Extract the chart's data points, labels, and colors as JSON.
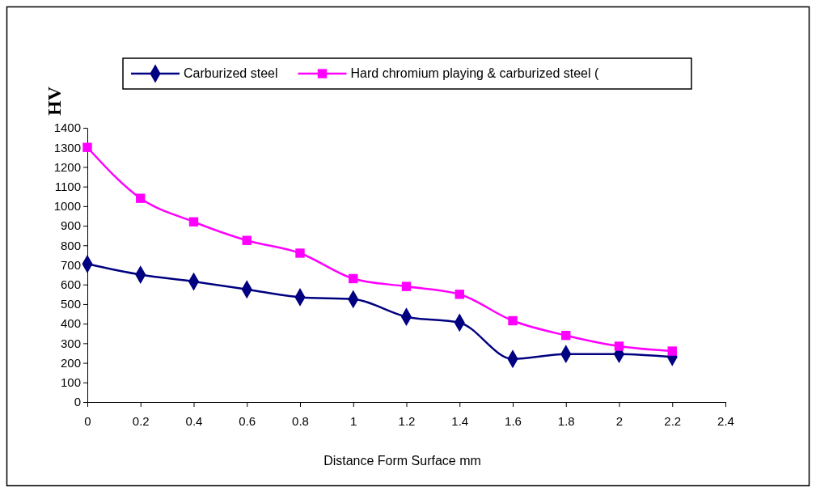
{
  "chart_data": {
    "type": "line",
    "xlabel": "Distance Form Surface mm",
    "ylabel": "HV",
    "x": [
      0,
      0.2,
      0.4,
      0.6,
      0.8,
      1,
      1.2,
      1.4,
      1.6,
      1.8,
      2,
      2.2
    ],
    "series": [
      {
        "name": "Carburized steel",
        "color": "#000080",
        "marker": "diamond",
        "values": [
          705,
          650,
          615,
          575,
          535,
          525,
          435,
          405,
          220,
          245,
          245,
          230
        ]
      },
      {
        "name": "Hard chromium playing & carburized steel (",
        "color": "#ff00ff",
        "marker": "square",
        "values": [
          1300,
          1040,
          920,
          825,
          760,
          630,
          590,
          550,
          415,
          340,
          285,
          260
        ]
      }
    ],
    "xlim": [
      0,
      2.4
    ],
    "xticks": [
      0,
      0.2,
      0.4,
      0.6,
      0.8,
      1,
      1.2,
      1.4,
      1.6,
      1.8,
      2,
      2.2,
      2.4
    ],
    "ylim": [
      0,
      1400
    ],
    "yticks": [
      0,
      100,
      200,
      300,
      400,
      500,
      600,
      700,
      800,
      900,
      1000,
      1100,
      1200,
      1300,
      1400
    ],
    "grid": false,
    "legend": "top"
  }
}
